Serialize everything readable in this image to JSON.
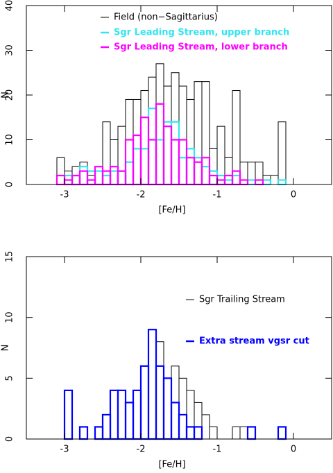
{
  "chart_data": [
    {
      "type": "histogram",
      "xlabel": "[Fe/H]",
      "ylabel": "N",
      "bins": [
        -3.5,
        -3.4,
        -3.3,
        -3.2,
        -3.1,
        -3,
        -2.9,
        -2.8,
        -2.7,
        -2.6,
        -2.5,
        -2.4,
        -2.3,
        -2.2,
        -2.1,
        -2,
        -1.9,
        -1.8,
        -1.7,
        -1.6,
        -1.5,
        -1.4,
        -1.3,
        -1.2,
        -1.1,
        -1,
        -0.9,
        -0.8,
        -0.7,
        -0.6,
        -0.5,
        -0.4,
        -0.3,
        -0.2,
        -0.1,
        0,
        0.1,
        0.2,
        0.3,
        0.4,
        0.5
      ],
      "series": [
        {
          "name": "Field (non−Sagittarius)",
          "color": "#000000",
          "values": [
            0,
            0,
            0,
            0,
            6,
            3,
            4,
            5,
            2,
            4,
            14,
            10,
            13,
            19,
            19,
            21,
            24,
            27,
            22,
            25,
            22,
            19,
            23,
            23,
            8,
            13,
            6,
            21,
            5,
            5,
            5,
            2,
            2,
            14,
            0,
            0,
            0,
            0,
            0,
            0
          ]
        },
        {
          "name": "Sgr Leading Stream, upper branch",
          "color": "#33e5f0",
          "values": [
            0,
            0,
            0,
            0,
            0,
            2,
            2,
            4,
            3,
            3,
            2,
            3,
            3,
            5,
            8,
            8,
            17,
            10,
            14,
            14,
            6,
            8,
            6,
            4,
            3,
            2,
            1,
            2,
            0,
            1,
            0,
            1,
            0,
            1,
            0,
            0,
            0,
            0,
            0,
            0
          ]
        },
        {
          "name": "Sgr Leading Stream, lower branch",
          "color": "#ff00ff",
          "values": [
            0,
            0,
            0,
            0,
            2,
            1,
            2,
            3,
            1,
            4,
            3,
            4,
            3,
            10,
            11,
            15,
            10,
            18,
            13,
            10,
            10,
            6,
            5,
            6,
            2,
            1,
            2,
            3,
            1,
            0,
            1,
            0,
            0,
            0,
            0,
            0,
            0,
            0,
            0,
            0
          ]
        }
      ],
      "xlim": [
        -3.5,
        0.5
      ],
      "xticks": [
        -3,
        -2,
        -1,
        0
      ],
      "ylim": [
        0,
        40
      ],
      "yticks": [
        0,
        10,
        20,
        30,
        40
      ]
    },
    {
      "type": "histogram",
      "xlabel": "[Fe/H]",
      "ylabel": "N",
      "bins": [
        -3.5,
        -3.4,
        -3.3,
        -3.2,
        -3.1,
        -3,
        -2.9,
        -2.8,
        -2.7,
        -2.6,
        -2.5,
        -2.4,
        -2.3,
        -2.2,
        -2.1,
        -2,
        -1.9,
        -1.8,
        -1.7,
        -1.6,
        -1.5,
        -1.4,
        -1.3,
        -1.2,
        -1.1,
        -1,
        -0.9,
        -0.8,
        -0.7,
        -0.6,
        -0.5,
        -0.4,
        -0.3,
        -0.2,
        -0.1,
        0,
        0.1,
        0.2,
        0.3,
        0.4,
        0.5
      ],
      "series": [
        {
          "name": "Sgr Trailing Stream",
          "color": "#000000",
          "values": [
            0,
            0,
            0,
            0,
            0,
            4,
            0,
            1,
            0,
            1,
            2,
            4,
            4,
            3,
            4,
            6,
            9,
            8,
            5,
            6,
            5,
            4,
            3,
            2,
            1,
            0,
            0,
            1,
            1,
            1,
            0,
            0,
            0,
            1,
            0,
            0,
            0,
            0,
            0,
            0
          ]
        },
        {
          "name": "Extra stream vgsr cut",
          "color": "#0000ff",
          "values": [
            0,
            0,
            0,
            0,
            0,
            4,
            0,
            1,
            0,
            1,
            2,
            4,
            4,
            3,
            4,
            6,
            9,
            6,
            5,
            3,
            2,
            1,
            1,
            0,
            0,
            0,
            0,
            0,
            0,
            1,
            0,
            0,
            0,
            1,
            0,
            0,
            0,
            0,
            0,
            0
          ]
        }
      ],
      "xlim": [
        -3.5,
        0.5
      ],
      "xticks": [
        -3,
        -2,
        -1,
        0
      ],
      "ylim": [
        0,
        15
      ],
      "yticks": [
        0,
        5,
        10,
        15
      ]
    }
  ]
}
